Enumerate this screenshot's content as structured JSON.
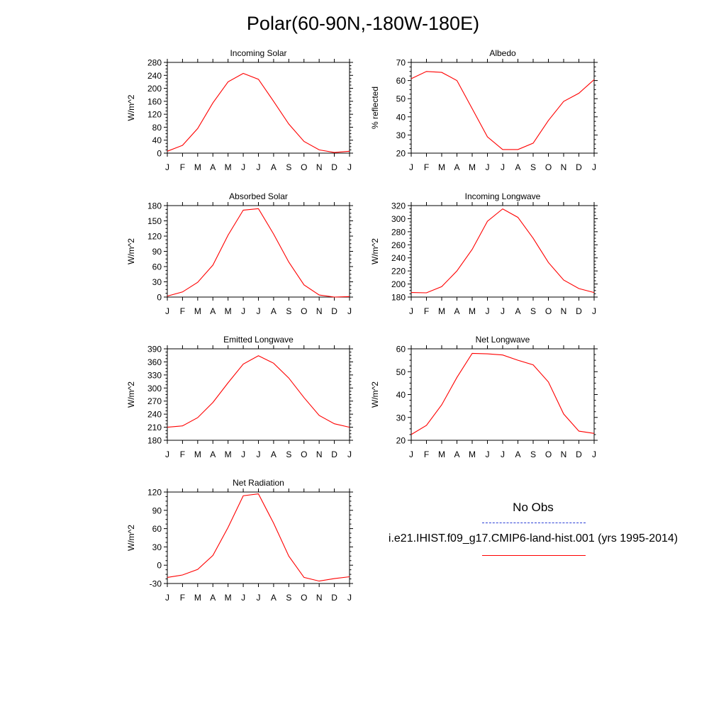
{
  "title": "Polar(60-90N,-180W-180E)",
  "months": [
    "J",
    "F",
    "M",
    "A",
    "M",
    "J",
    "J",
    "A",
    "S",
    "O",
    "N",
    "D",
    "J"
  ],
  "legend": {
    "obs_label": "No Obs",
    "model_label": "i.e21.IHIST.f09_g17.CMIP6-land-hist.001 (yrs 1995-2014)",
    "obs_color": "#2b3fd6",
    "model_color": "#ff0000"
  },
  "chart_data": [
    {
      "type": "line",
      "title": "Incoming Solar",
      "ylabel": "W/m^2",
      "ylim": [
        0,
        280
      ],
      "yticks": [
        0,
        40,
        80,
        120,
        160,
        200,
        240,
        280
      ],
      "series": [
        {
          "values": [
            6,
            24,
            76,
            155,
            220,
            246,
            228,
            160,
            90,
            36,
            10,
            2,
            6
          ]
        }
      ]
    },
    {
      "type": "line",
      "title": "Albedo",
      "ylabel": "% reflected",
      "ylim": [
        20,
        70
      ],
      "yticks": [
        20,
        30,
        40,
        50,
        60,
        70
      ],
      "series": [
        {
          "values": [
            61,
            65,
            64.5,
            60,
            44.5,
            29,
            22,
            22,
            25.5,
            38,
            48.5,
            53,
            60.5
          ]
        }
      ]
    },
    {
      "type": "line",
      "title": "Absorbed Solar",
      "ylabel": "W/m^2",
      "ylim": [
        0,
        180
      ],
      "yticks": [
        0,
        30,
        60,
        90,
        120,
        150,
        180
      ],
      "series": [
        {
          "values": [
            2,
            10,
            29,
            63,
            122,
            171,
            174,
            124,
            69,
            24,
            4,
            0,
            1
          ]
        }
      ]
    },
    {
      "type": "line",
      "title": "Incoming Longwave",
      "ylabel": "W/m^2",
      "ylim": [
        180,
        320
      ],
      "yticks": [
        180,
        200,
        220,
        240,
        260,
        280,
        300,
        320
      ],
      "series": [
        {
          "values": [
            187,
            186.5,
            196,
            220,
            253,
            296,
            315,
            302,
            270,
            233,
            206,
            193,
            187
          ]
        }
      ]
    },
    {
      "type": "line",
      "title": "Emitted Longwave",
      "ylabel": "W/m^2",
      "ylim": [
        180,
        390
      ],
      "yticks": [
        180,
        210,
        240,
        270,
        300,
        330,
        360,
        390
      ],
      "series": [
        {
          "values": [
            210,
            213,
            232,
            267,
            312,
            355,
            374,
            357,
            323,
            278,
            237,
            218,
            210
          ]
        }
      ]
    },
    {
      "type": "line",
      "title": "Net Longwave",
      "ylabel": "W/m^2",
      "ylim": [
        20,
        60
      ],
      "yticks": [
        20,
        30,
        40,
        50,
        60
      ],
      "series": [
        {
          "values": [
            22.5,
            26.5,
            35.5,
            47.5,
            58,
            57.8,
            57.3,
            55,
            53,
            45.5,
            31.5,
            24,
            23
          ]
        }
      ]
    },
    {
      "type": "line",
      "title": "Net Radiation",
      "ylabel": "W/m^2",
      "ylim": [
        -30,
        120
      ],
      "yticks": [
        -30,
        0,
        30,
        60,
        90,
        120
      ],
      "series": [
        {
          "values": [
            -20,
            -16,
            -7,
            16,
            62,
            114,
            117,
            69,
            15,
            -20,
            -26,
            -22,
            -19
          ]
        }
      ]
    }
  ]
}
